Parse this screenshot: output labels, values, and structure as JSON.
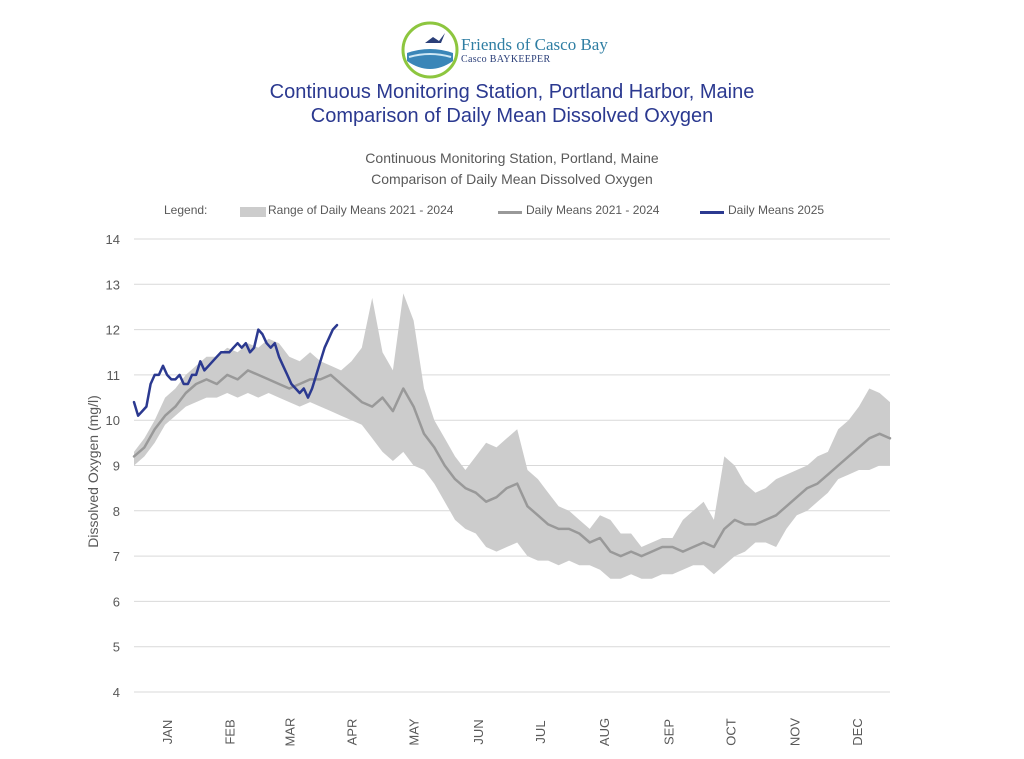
{
  "logo": {
    "name": "Friends of Casco Bay",
    "subtitle": "Casco BAYKEEPER"
  },
  "header": {
    "title_line1": "Continuous Monitoring Station, Portland Harbor, Maine",
    "title_line2": "Comparison of Daily Mean Dissolved Oxygen"
  },
  "colors": {
    "title": "#2b3990",
    "band": "#cccccc",
    "mean_line": "#999999",
    "current_line": "#2b3990",
    "gridline": "#d9d9d9",
    "text": "#595959"
  },
  "chart_data": {
    "type": "area",
    "title": "Continuous Monitoring Station, Portland, Maine",
    "subtitle": "Comparison of Daily Mean Dissolved Oxygen",
    "legend_label": "Legend:",
    "legend_position": "top",
    "xlabel": "",
    "ylabel": "Dissolved Oxygen (mg/l)",
    "ylim": [
      4,
      14
    ],
    "yticks": [
      4,
      5,
      6,
      7,
      8,
      9,
      10,
      11,
      12,
      13,
      14
    ],
    "xlim": [
      0,
      365
    ],
    "grid": true,
    "months": [
      {
        "label": "JAN",
        "day": 16
      },
      {
        "label": "FEB",
        "day": 46
      },
      {
        "label": "MAR",
        "day": 75
      },
      {
        "label": "APR",
        "day": 105
      },
      {
        "label": "MAY",
        "day": 135
      },
      {
        "label": "JUN",
        "day": 166
      },
      {
        "label": "JUL",
        "day": 196
      },
      {
        "label": "AUG",
        "day": 227
      },
      {
        "label": "SEP",
        "day": 258
      },
      {
        "label": "OCT",
        "day": 288
      },
      {
        "label": "NOV",
        "day": 319
      },
      {
        "label": "DEC",
        "day": 349
      }
    ],
    "series": [
      {
        "name": "Range of Daily Means 2021 - 2024",
        "kind": "band",
        "x": [
          0,
          5,
          10,
          15,
          20,
          25,
          30,
          35,
          40,
          45,
          50,
          55,
          60,
          65,
          70,
          75,
          80,
          85,
          90,
          95,
          100,
          105,
          110,
          115,
          120,
          125,
          130,
          135,
          140,
          145,
          150,
          155,
          160,
          165,
          170,
          175,
          180,
          185,
          190,
          195,
          200,
          205,
          210,
          215,
          220,
          225,
          230,
          235,
          240,
          245,
          250,
          255,
          260,
          265,
          270,
          275,
          280,
          285,
          290,
          295,
          300,
          305,
          310,
          315,
          320,
          325,
          330,
          335,
          340,
          345,
          350,
          355,
          360,
          365
        ],
        "high": [
          9.3,
          9.6,
          10.0,
          10.5,
          10.7,
          11.0,
          11.2,
          11.4,
          11.4,
          11.6,
          11.5,
          11.7,
          11.6,
          11.8,
          11.7,
          11.4,
          11.3,
          11.5,
          11.3,
          11.2,
          11.1,
          11.3,
          11.6,
          12.7,
          11.5,
          11.1,
          12.8,
          12.2,
          10.7,
          10.0,
          9.6,
          9.2,
          8.9,
          9.2,
          9.5,
          9.4,
          9.6,
          9.8,
          8.9,
          8.7,
          8.4,
          8.1,
          8.0,
          7.8,
          7.6,
          7.9,
          7.8,
          7.5,
          7.5,
          7.2,
          7.3,
          7.4,
          7.4,
          7.8,
          8.0,
          8.2,
          7.8,
          9.2,
          9.0,
          8.6,
          8.4,
          8.5,
          8.7,
          8.8,
          8.9,
          9.0,
          9.2,
          9.3,
          9.8,
          10.0,
          10.3,
          10.7,
          10.6,
          10.4
        ],
        "low": [
          9.0,
          9.2,
          9.5,
          9.9,
          10.1,
          10.3,
          10.4,
          10.5,
          10.5,
          10.6,
          10.5,
          10.6,
          10.5,
          10.6,
          10.5,
          10.4,
          10.3,
          10.4,
          10.3,
          10.2,
          10.1,
          10.0,
          9.9,
          9.6,
          9.3,
          9.1,
          9.3,
          9.0,
          8.9,
          8.6,
          8.2,
          7.8,
          7.6,
          7.5,
          7.2,
          7.1,
          7.2,
          7.3,
          7.0,
          6.9,
          6.9,
          6.8,
          6.9,
          6.8,
          6.8,
          6.7,
          6.5,
          6.5,
          6.6,
          6.5,
          6.5,
          6.6,
          6.6,
          6.7,
          6.8,
          6.8,
          6.6,
          6.8,
          7.0,
          7.1,
          7.3,
          7.3,
          7.2,
          7.6,
          7.9,
          8.0,
          8.2,
          8.4,
          8.7,
          8.8,
          8.9,
          8.9,
          9.0,
          9.0
        ]
      },
      {
        "name": "Daily Means 2021 - 2024",
        "kind": "line",
        "x": [
          0,
          5,
          10,
          15,
          20,
          25,
          30,
          35,
          40,
          45,
          50,
          55,
          60,
          65,
          70,
          75,
          80,
          85,
          90,
          95,
          100,
          105,
          110,
          115,
          120,
          125,
          130,
          135,
          140,
          145,
          150,
          155,
          160,
          165,
          170,
          175,
          180,
          185,
          190,
          195,
          200,
          205,
          210,
          215,
          220,
          225,
          230,
          235,
          240,
          245,
          250,
          255,
          260,
          265,
          270,
          275,
          280,
          285,
          290,
          295,
          300,
          305,
          310,
          315,
          320,
          325,
          330,
          335,
          340,
          345,
          350,
          355,
          360,
          365
        ],
        "values": [
          9.2,
          9.4,
          9.8,
          10.1,
          10.3,
          10.6,
          10.8,
          10.9,
          10.8,
          11.0,
          10.9,
          11.1,
          11.0,
          10.9,
          10.8,
          10.7,
          10.8,
          10.9,
          10.9,
          11.0,
          10.8,
          10.6,
          10.4,
          10.3,
          10.5,
          10.2,
          10.7,
          10.3,
          9.7,
          9.4,
          9.0,
          8.7,
          8.5,
          8.4,
          8.2,
          8.3,
          8.5,
          8.6,
          8.1,
          7.9,
          7.7,
          7.6,
          7.6,
          7.5,
          7.3,
          7.4,
          7.1,
          7.0,
          7.1,
          7.0,
          7.1,
          7.2,
          7.2,
          7.1,
          7.2,
          7.3,
          7.2,
          7.6,
          7.8,
          7.7,
          7.7,
          7.8,
          7.9,
          8.1,
          8.3,
          8.5,
          8.6,
          8.8,
          9.0,
          9.2,
          9.4,
          9.6,
          9.7,
          9.6
        ]
      },
      {
        "name": "Daily Means 2025",
        "kind": "line",
        "x": [
          0,
          2,
          4,
          6,
          8,
          10,
          12,
          14,
          16,
          18,
          20,
          22,
          24,
          26,
          28,
          30,
          32,
          34,
          36,
          38,
          40,
          42,
          44,
          46,
          48,
          50,
          52,
          54,
          56,
          58,
          60,
          62,
          64,
          66,
          68,
          70,
          72,
          74,
          76,
          78,
          80,
          82,
          84,
          86,
          88,
          90,
          92,
          94,
          96,
          98
        ],
        "values": [
          10.4,
          10.1,
          10.2,
          10.3,
          10.8,
          11.0,
          11.0,
          11.2,
          11.0,
          10.9,
          10.9,
          11.0,
          10.8,
          10.8,
          11.0,
          11.0,
          11.3,
          11.1,
          11.2,
          11.3,
          11.4,
          11.5,
          11.5,
          11.5,
          11.6,
          11.7,
          11.6,
          11.7,
          11.5,
          11.6,
          12.0,
          11.9,
          11.7,
          11.6,
          11.7,
          11.4,
          11.2,
          11.0,
          10.8,
          10.7,
          10.6,
          10.7,
          10.5,
          10.7,
          11.0,
          11.3,
          11.6,
          11.8,
          12.0,
          12.1
        ]
      }
    ]
  }
}
